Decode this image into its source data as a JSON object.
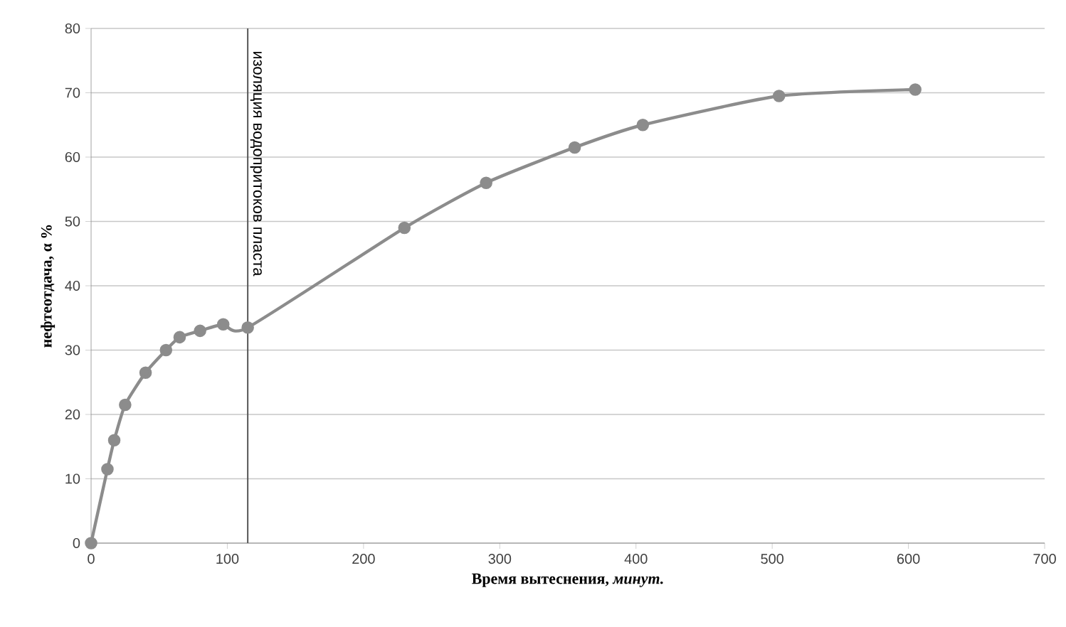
{
  "chart_data": {
    "type": "line",
    "xlabel": "**Время вытеснения,** *минут.*",
    "ylabel": "нефтеотдача, α %",
    "x": [
      0,
      12,
      17,
      25,
      40,
      55,
      65,
      80,
      97,
      115,
      230,
      290,
      355,
      405,
      505,
      605
    ],
    "series": [
      {
        "color": "#8c8c8c",
        "values": [
          0,
          11.5,
          16,
          21.5,
          26.5,
          30,
          32,
          33,
          34,
          33.5,
          49,
          56,
          61.5,
          65,
          69.5,
          70.5
        ]
      }
    ],
    "xlim": [
      0,
      700
    ],
    "ylim": [
      0,
      80
    ],
    "xticks": [
      0,
      100,
      200,
      300,
      400,
      500,
      600,
      700
    ],
    "yticks": [
      0,
      10,
      20,
      30,
      40,
      50,
      60,
      70,
      80
    ],
    "grid": "y",
    "marker": "circle",
    "line_style": "solid",
    "ref_lines": [
      {
        "axis": "x",
        "value": 115,
        "label": "изоляция водопритоков пласта",
        "color": "#555555"
      }
    ]
  }
}
